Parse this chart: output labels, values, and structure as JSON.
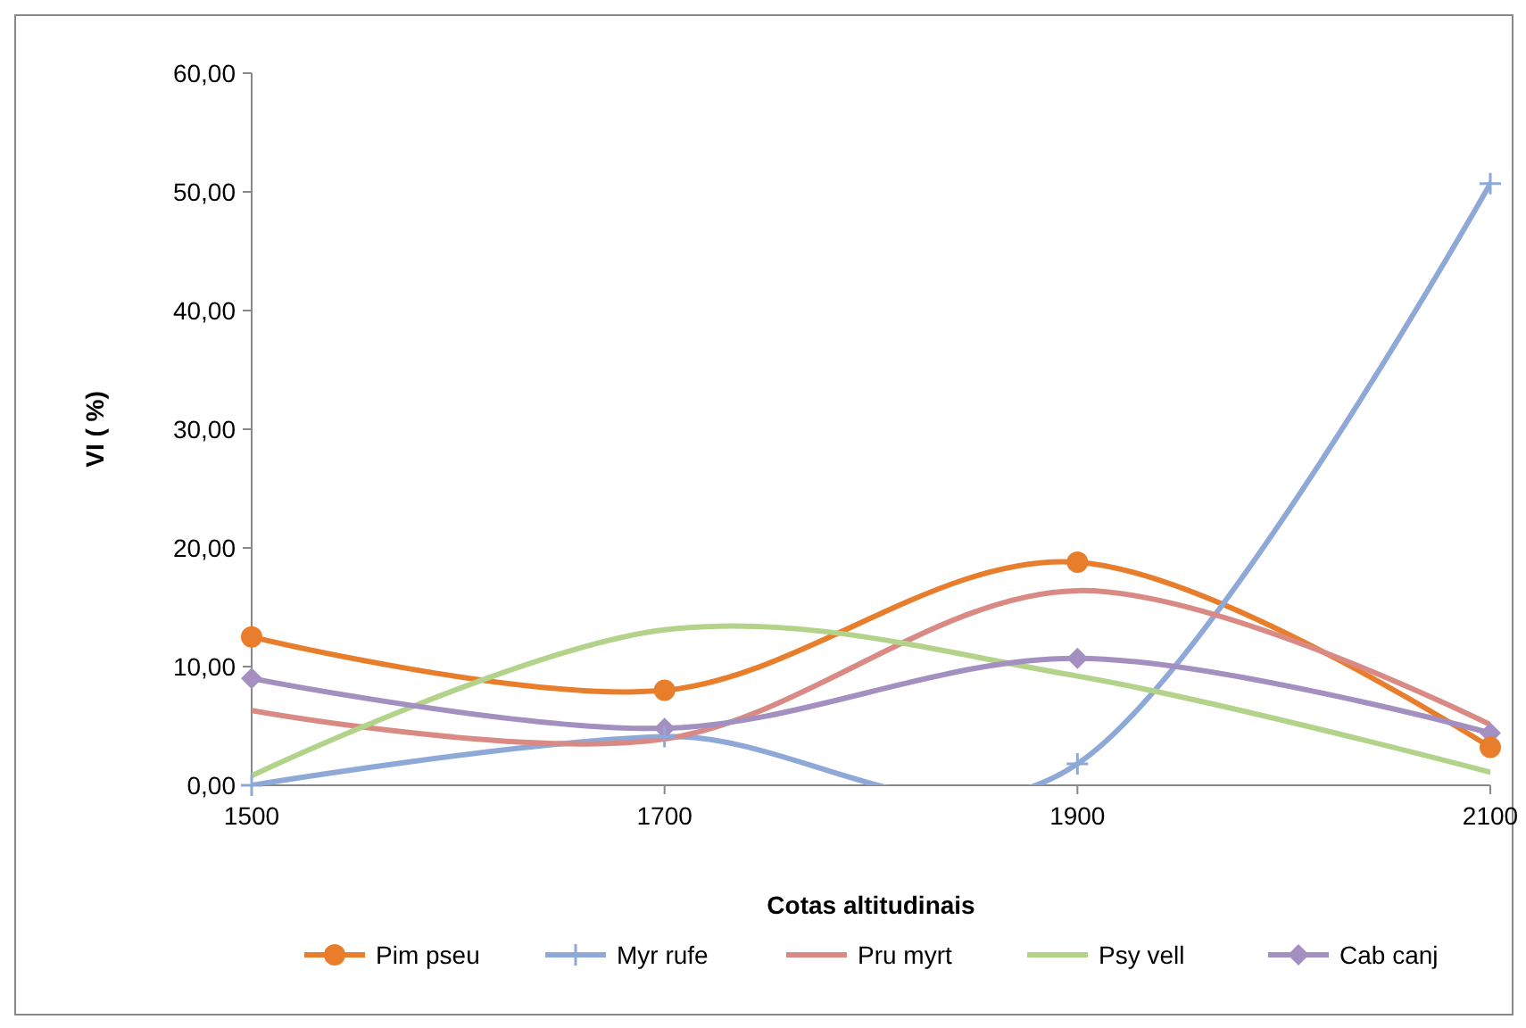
{
  "chart_data": {
    "type": "line",
    "xlabel": "Cotas altitudinais",
    "ylabel": "VI ( %)",
    "x": [
      1500,
      1700,
      1900,
      2100
    ],
    "xlim": [
      1500,
      2100
    ],
    "xticks": [
      1500,
      1700,
      1900,
      2100
    ],
    "ylim": [
      0,
      60
    ],
    "yticks": [
      {
        "value": 0,
        "label": "0,00"
      },
      {
        "value": 10,
        "label": "10,00"
      },
      {
        "value": 20,
        "label": "20,00"
      },
      {
        "value": 30,
        "label": "30,00"
      },
      {
        "value": 40,
        "label": "40,00"
      },
      {
        "value": 50,
        "label": "50,00"
      },
      {
        "value": 60,
        "label": "60,00"
      }
    ],
    "grid": false,
    "legend": "bottom",
    "series": [
      {
        "name": "Pim pseu",
        "color": "#e87e2c",
        "marker": "circle",
        "values": [
          12.5,
          8.0,
          18.8,
          3.2
        ]
      },
      {
        "name": "Myr rufe",
        "color": "#8ea9d8",
        "marker": "cross",
        "values": [
          0,
          4.1,
          1.8,
          50.7
        ]
      },
      {
        "name": "Pru myrt",
        "color": "#da8a84",
        "marker": "none",
        "values": [
          6.3,
          3.9,
          16.4,
          5.1
        ]
      },
      {
        "name": "Psy vell",
        "color": "#b3d38a",
        "marker": "none",
        "values": [
          0.8,
          13.1,
          9.2,
          1.1
        ]
      },
      {
        "name": "Cab canj",
        "color": "#a38fc0",
        "marker": "diamond",
        "values": [
          9.0,
          4.8,
          10.7,
          4.4
        ]
      }
    ]
  }
}
